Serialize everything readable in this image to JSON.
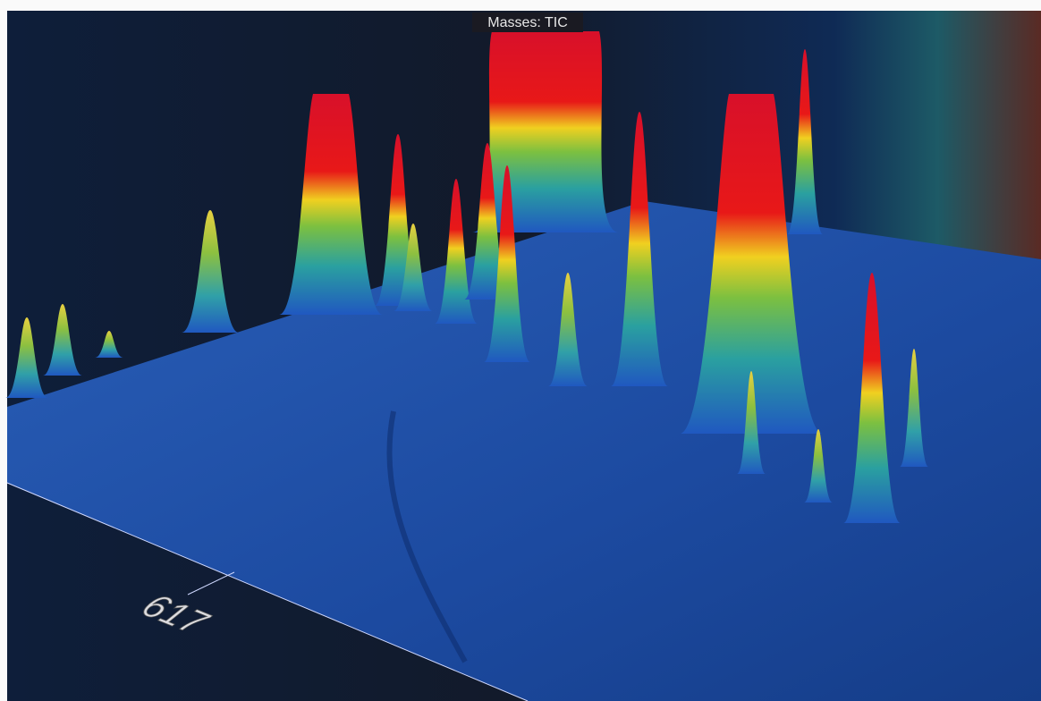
{
  "header": {
    "title": "Masses: TIC"
  },
  "axis": {
    "label": "617"
  }
}
